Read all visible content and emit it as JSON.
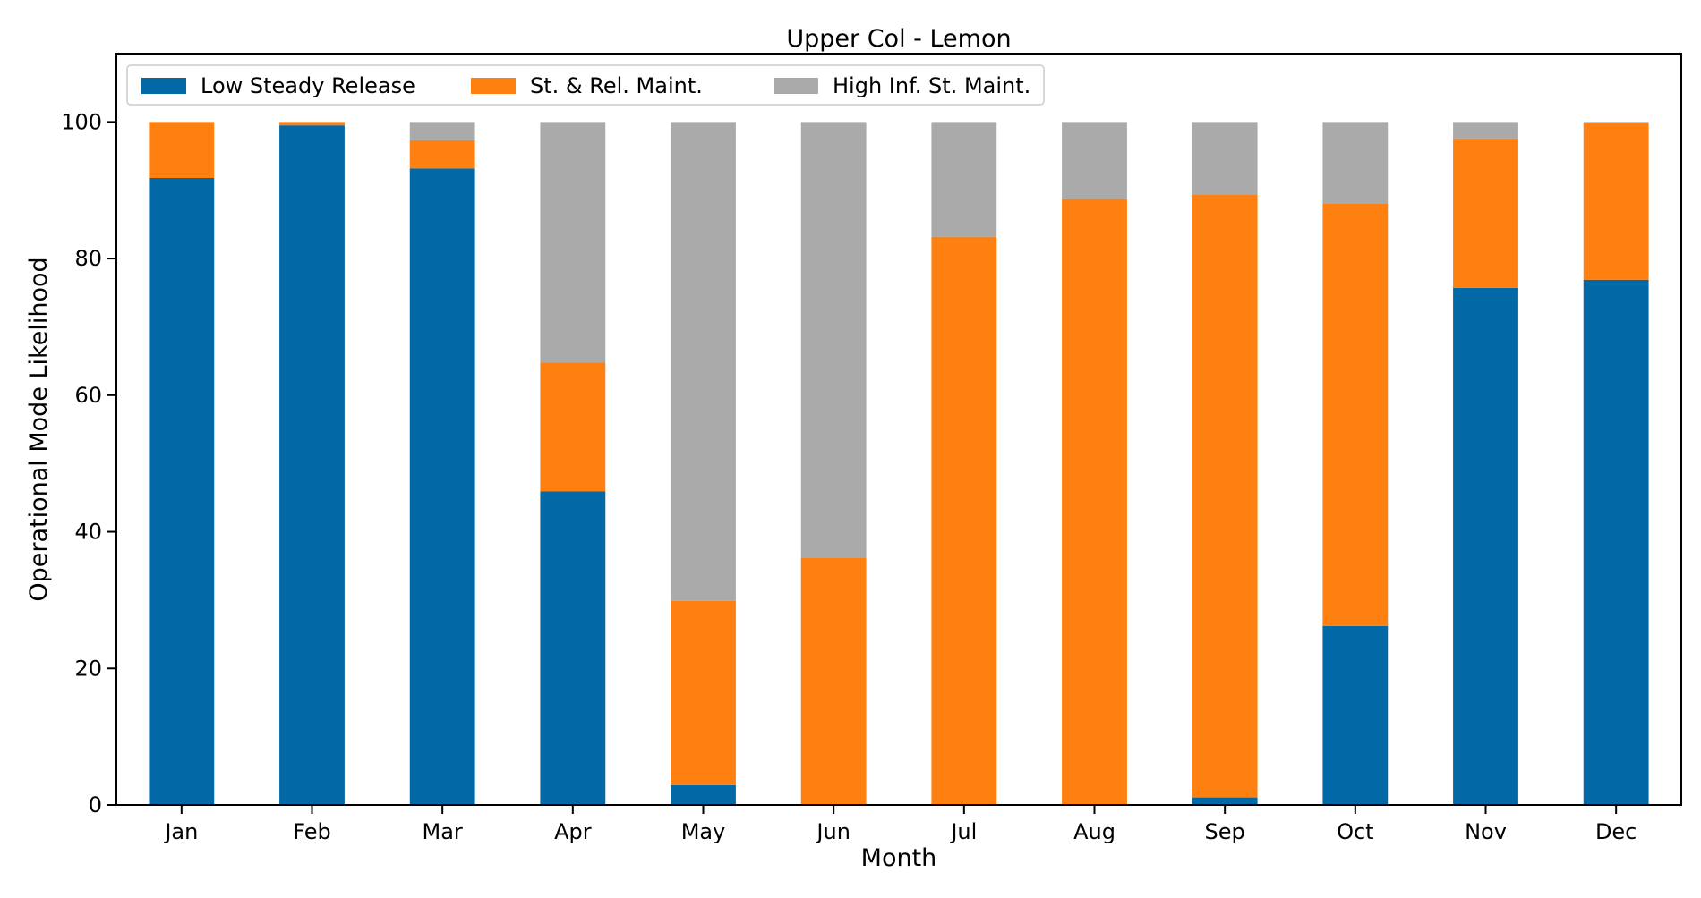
{
  "chart_data": {
    "type": "bar",
    "stacked": true,
    "title": "Upper Col - Lemon",
    "xlabel": "Month",
    "ylabel": "Operational Mode Likelihood",
    "categories": [
      "Jan",
      "Feb",
      "Mar",
      "Apr",
      "May",
      "Jun",
      "Jul",
      "Aug",
      "Sep",
      "Oct",
      "Nov",
      "Dec"
    ],
    "ylim": [
      0,
      110
    ],
    "yticks": [
      0,
      20,
      40,
      60,
      80,
      100
    ],
    "grid": false,
    "legend_position": "top-left",
    "series": [
      {
        "name": "Low Steady Release",
        "color": "#0369a6",
        "values": [
          91.8,
          99.5,
          93.2,
          45.9,
          2.9,
          0.0,
          0.0,
          0.0,
          1.1,
          26.2,
          75.7,
          76.9
        ]
      },
      {
        "name": "St. & Rel. Maint.",
        "color": "#fe8011",
        "values": [
          8.2,
          0.5,
          4.1,
          18.9,
          27.0,
          36.2,
          83.2,
          88.7,
          88.3,
          61.9,
          21.9,
          22.9
        ]
      },
      {
        "name": "High Inf. St. Maint.",
        "color": "#aaaaaa",
        "values": [
          0.0,
          0.0,
          2.7,
          35.2,
          70.1,
          63.8,
          16.8,
          11.3,
          10.6,
          11.9,
          2.4,
          0.2
        ]
      }
    ]
  }
}
